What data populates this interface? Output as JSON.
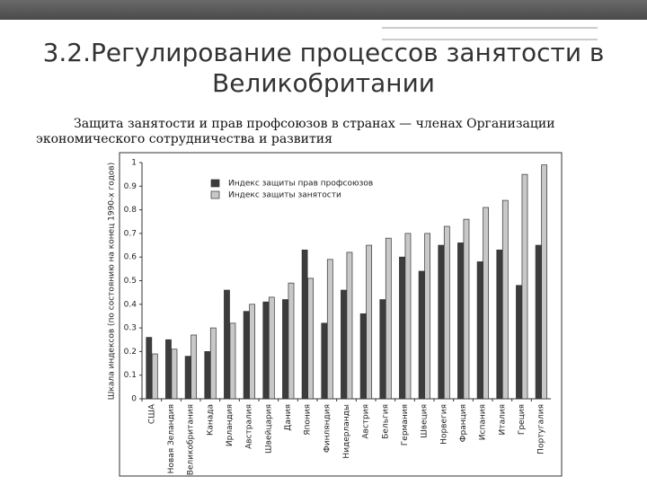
{
  "title": "3.2.Регулирование процессов занятости в Великобритании",
  "subtitle": "Защита занятости и прав профсоюзов в странах — членах Организации экономического сотрудничества и развития",
  "chart_data": {
    "type": "bar",
    "ylabel": "Шкала индексов (по состоянию на конец 1990-х годов)",
    "categories": [
      "США",
      "Новая Зеландия",
      "Великобритания",
      "Канада",
      "Ирландия",
      "Австралия",
      "Швейцария",
      "Дания",
      "Япония",
      "Финляндия",
      "Нидерланды",
      "Австрия",
      "Бельгия",
      "Германия",
      "Швеция",
      "Норвегия",
      "Франция",
      "Испания",
      "Италия",
      "Греция",
      "Португалия"
    ],
    "series": [
      {
        "name": "Индекс защиты прав профсоюзов",
        "color": "#3c3c3c",
        "values": [
          0.26,
          0.25,
          0.18,
          0.2,
          0.46,
          0.37,
          0.41,
          0.42,
          0.63,
          0.32,
          0.46,
          0.36,
          0.42,
          0.6,
          0.54,
          0.65,
          0.66,
          0.58,
          0.63,
          0.48,
          0.65
        ]
      },
      {
        "name": "Индекс защиты занятости",
        "color": "#c8c8c8",
        "values": [
          0.19,
          0.21,
          0.27,
          0.3,
          0.32,
          0.4,
          0.43,
          0.49,
          0.51,
          0.59,
          0.62,
          0.65,
          0.68,
          0.7,
          0.7,
          0.73,
          0.76,
          0.81,
          0.84,
          0.95,
          0.99
        ]
      }
    ],
    "ylim": [
      0,
      1
    ],
    "yticks": [
      0,
      0.1,
      0.2,
      0.3,
      0.4,
      0.5,
      0.6,
      0.7,
      0.8,
      0.9,
      1
    ],
    "legend": "upper left"
  }
}
